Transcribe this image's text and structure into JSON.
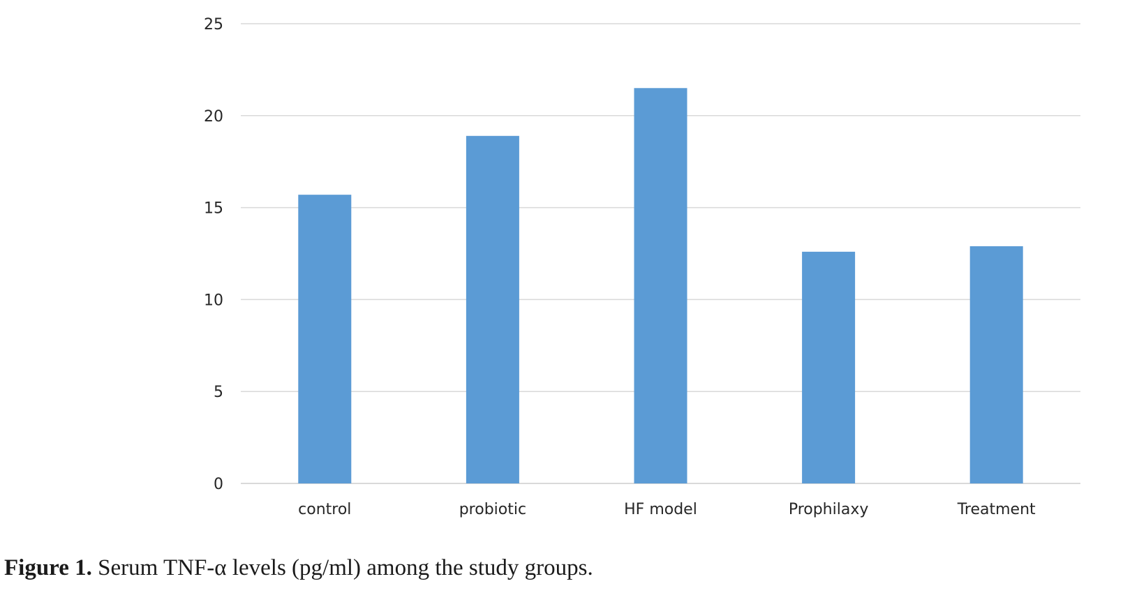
{
  "chart_data": {
    "type": "bar",
    "categories": [
      "control",
      "probiotic",
      "HF model",
      "Prophilaxy",
      "Treatment"
    ],
    "values": [
      15.7,
      18.9,
      21.5,
      12.6,
      12.9
    ],
    "ylim": [
      0,
      25
    ],
    "y_ticks": [
      "0",
      "5",
      "10",
      "15",
      "20",
      "25"
    ],
    "grid": true,
    "legend": "none",
    "bar_color": "#5b9bd5",
    "grid_color": "#d9d9d9"
  },
  "caption": {
    "label": "Figure 1.",
    "text": "Serum TNF-α levels (pg/ml) among the study groups."
  }
}
